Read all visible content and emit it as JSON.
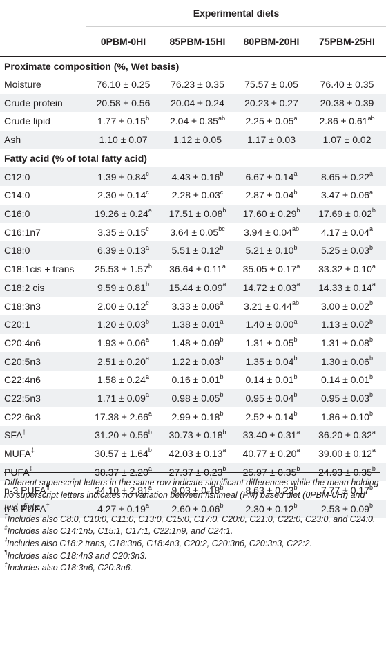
{
  "header": {
    "group_label": "Experimental diets",
    "columns": [
      "0PBM-0HI",
      "85PBM-15HI",
      "80PBM-20HI",
      "75PBM-25HI"
    ]
  },
  "sections": [
    {
      "title": "Proximate composition (%, Wet basis)",
      "rows": [
        {
          "label": "Moisture",
          "label_sup": "",
          "values": [
            {
              "v": "76.10 ± 0.25",
              "s": ""
            },
            {
              "v": "76.23 ± 0.35",
              "s": ""
            },
            {
              "v": "75.57 ± 0.05",
              "s": ""
            },
            {
              "v": "76.40 ± 0.35",
              "s": ""
            }
          ]
        },
        {
          "label": "Crude protein",
          "label_sup": "",
          "values": [
            {
              "v": "20.58 ± 0.56",
              "s": ""
            },
            {
              "v": "20.04 ± 0.24",
              "s": ""
            },
            {
              "v": "20.23 ± 0.27",
              "s": ""
            },
            {
              "v": "20.38 ± 0.39",
              "s": ""
            }
          ]
        },
        {
          "label": "Crude lipid",
          "label_sup": "",
          "values": [
            {
              "v": "1.77 ± 0.15",
              "s": "b"
            },
            {
              "v": "2.04 ± 0.35",
              "s": "ab"
            },
            {
              "v": "2.25 ± 0.05",
              "s": "a"
            },
            {
              "v": "2.86 ± 0.61",
              "s": "ab"
            }
          ]
        },
        {
          "label": "Ash",
          "label_sup": "",
          "values": [
            {
              "v": "1.10 ± 0.07",
              "s": ""
            },
            {
              "v": "1.12 ± 0.05",
              "s": ""
            },
            {
              "v": "1.17 ± 0.03",
              "s": ""
            },
            {
              "v": "1.07 ± 0.02",
              "s": ""
            }
          ]
        }
      ]
    },
    {
      "title": "Fatty acid (% of total fatty acid)",
      "rows": [
        {
          "label": "C12:0",
          "label_sup": "",
          "values": [
            {
              "v": "1.39 ± 0.84",
              "s": "c"
            },
            {
              "v": "4.43 ± 0.16",
              "s": "b"
            },
            {
              "v": "6.67 ± 0.14",
              "s": "a"
            },
            {
              "v": "8.65 ± 0.22",
              "s": "a"
            }
          ]
        },
        {
          "label": "C14:0",
          "label_sup": "",
          "values": [
            {
              "v": "2.30 ± 0.14",
              "s": "c"
            },
            {
              "v": "2.28 ± 0.03",
              "s": "c"
            },
            {
              "v": "2.87 ± 0.04",
              "s": "b"
            },
            {
              "v": "3.47 ± 0.06",
              "s": "a"
            }
          ]
        },
        {
          "label": "C16:0",
          "label_sup": "",
          "values": [
            {
              "v": "19.26 ± 0.24",
              "s": "a"
            },
            {
              "v": "17.51 ± 0.08",
              "s": "b"
            },
            {
              "v": "17.60 ± 0.29",
              "s": "b"
            },
            {
              "v": "17.69 ± 0.02",
              "s": "b"
            }
          ]
        },
        {
          "label": "C16:1n7",
          "label_sup": "",
          "values": [
            {
              "v": "3.35 ± 0.15",
              "s": "c"
            },
            {
              "v": "3.64 ± 0.05",
              "s": "bc"
            },
            {
              "v": "3.94 ± 0.04",
              "s": "ab"
            },
            {
              "v": "4.17 ± 0.04",
              "s": "a"
            }
          ]
        },
        {
          "label": "C18:0",
          "label_sup": "",
          "values": [
            {
              "v": "6.39 ± 0.13",
              "s": "a"
            },
            {
              "v": "5.51 ± 0.12",
              "s": "b"
            },
            {
              "v": "5.21 ± 0.10",
              "s": "b"
            },
            {
              "v": "5.25 ± 0.03",
              "s": "b"
            }
          ]
        },
        {
          "label": "C18:1cis + trans",
          "label_sup": "",
          "values": [
            {
              "v": "25.53 ± 1.57",
              "s": "b"
            },
            {
              "v": "36.64 ± 0.11",
              "s": "a"
            },
            {
              "v": "35.05 ± 0.17",
              "s": "a"
            },
            {
              "v": "33.32 ± 0.10",
              "s": "a"
            }
          ]
        },
        {
          "label": "C18:2 cis",
          "label_sup": "",
          "values": [
            {
              "v": "9.59 ± 0.81",
              "s": "b"
            },
            {
              "v": "15.44 ± 0.09",
              "s": "a"
            },
            {
              "v": "14.72 ± 0.03",
              "s": "a"
            },
            {
              "v": "14.33 ± 0.14",
              "s": "a"
            }
          ]
        },
        {
          "label": "C18:3n3",
          "label_sup": "",
          "values": [
            {
              "v": "2.00 ± 0.12",
              "s": "c"
            },
            {
              "v": "3.33 ± 0.06",
              "s": "a"
            },
            {
              "v": "3.21 ± 0.44",
              "s": "ab"
            },
            {
              "v": "3.00 ± 0.02",
              "s": "b"
            }
          ]
        },
        {
          "label": "C20:1",
          "label_sup": "",
          "values": [
            {
              "v": "1.20 ± 0.03",
              "s": "b"
            },
            {
              "v": "1.38 ± 0.01",
              "s": "a"
            },
            {
              "v": "1.40 ± 0.00",
              "s": "a"
            },
            {
              "v": "1.13 ± 0.02",
              "s": "b"
            }
          ]
        },
        {
          "label": "C20:4n6",
          "label_sup": "",
          "values": [
            {
              "v": "1.93 ± 0.06",
              "s": "a"
            },
            {
              "v": "1.48 ± 0.09",
              "s": "b"
            },
            {
              "v": "1.31 ± 0.05",
              "s": "b"
            },
            {
              "v": "1.31 ± 0.08",
              "s": "b"
            }
          ]
        },
        {
          "label": "C20:5n3",
          "label_sup": "",
          "values": [
            {
              "v": "2.51 ± 0.20",
              "s": "a"
            },
            {
              "v": "1.22 ± 0.03",
              "s": "b"
            },
            {
              "v": "1.35 ± 0.04",
              "s": "b"
            },
            {
              "v": "1.30 ± 0.06",
              "s": "b"
            }
          ]
        },
        {
          "label": "C22:4n6",
          "label_sup": "",
          "values": [
            {
              "v": "1.58 ± 0.24",
              "s": "a"
            },
            {
              "v": "0.16 ± 0.01",
              "s": "b"
            },
            {
              "v": "0.14 ± 0.01",
              "s": "b"
            },
            {
              "v": "0.14 ± 0.01",
              "s": "b"
            }
          ]
        },
        {
          "label": "C22:5n3",
          "label_sup": "",
          "values": [
            {
              "v": "1.71 ± 0.09",
              "s": "a"
            },
            {
              "v": "0.98 ± 0.05",
              "s": "b"
            },
            {
              "v": "0.95 ± 0.04",
              "s": "b"
            },
            {
              "v": "0.95 ± 0.03",
              "s": "b"
            }
          ]
        },
        {
          "label": "C22:6n3",
          "label_sup": "",
          "values": [
            {
              "v": "17.38 ± 2.66",
              "s": "a"
            },
            {
              "v": "2.99 ± 0.18",
              "s": "b"
            },
            {
              "v": "2.52 ± 0.14",
              "s": "b"
            },
            {
              "v": "1.86 ± 0.10",
              "s": "b"
            }
          ]
        },
        {
          "label": "SFA",
          "label_sup": "†",
          "values": [
            {
              "v": "31.20 ± 0.56",
              "s": "b"
            },
            {
              "v": "30.73 ± 0.18",
              "s": "b"
            },
            {
              "v": "33.40 ± 0.31",
              "s": "a"
            },
            {
              "v": "36.20 ± 0.32",
              "s": "a"
            }
          ]
        },
        {
          "label": "MUFA",
          "label_sup": "‡",
          "values": [
            {
              "v": "30.57 ± 1.64",
              "s": "b"
            },
            {
              "v": "42.03 ± 0.13",
              "s": "a"
            },
            {
              "v": "40.77 ± 0.20",
              "s": "a"
            },
            {
              "v": "39.00 ± 0.12",
              "s": "a"
            }
          ]
        },
        {
          "label": "PUFA",
          "label_sup": "⸸",
          "values": [
            {
              "v": "38.37 ± 2.20",
              "s": "a"
            },
            {
              "v": "27.37 ± 0.23",
              "s": "b"
            },
            {
              "v": "25.97 ± 0.35",
              "s": "b"
            },
            {
              "v": "24.93 ± 0.35",
              "s": "b"
            }
          ]
        },
        {
          "label": "n-3 PUFA",
          "label_sup": "¶",
          "values": [
            {
              "v": "24.10 ± 2.81",
              "s": "a"
            },
            {
              "v": "9.03 ± 0.18",
              "s": "b"
            },
            {
              "v": "8.63 ± 0.23",
              "s": "b"
            },
            {
              "v": "7.77 ± 0.17",
              "s": "b"
            }
          ]
        },
        {
          "label": "n-6 PUFA",
          "label_sup": "†",
          "values": [
            {
              "v": "4.27 ± 0.19",
              "s": "a"
            },
            {
              "v": "2.60 ± 0.06",
              "s": "b"
            },
            {
              "v": "2.30 ± 0.12",
              "s": "b"
            },
            {
              "v": "2.53 ± 0.09",
              "s": "b"
            }
          ]
        }
      ]
    }
  ],
  "footnotes": [
    {
      "sup": "",
      "text": "Different superscript letters in the same row indicate significant differences while the mean holding no superscript letters indicates no variation between fishmeal (FM) based diet (0PBM-0HI) and test diets."
    },
    {
      "sup": "†",
      "text": "Includes also C8:0, C10:0, C11:0, C13:0, C15:0, C17:0, C20:0, C21:0, C22:0, C23:0, and C24:0."
    },
    {
      "sup": "‡",
      "text": "Includes also C14:1n5, C15:1, C17:1, C22:1n9, and C24:1."
    },
    {
      "sup": "⸸",
      "text": "Includes also C18:2 trans, C18:3n6, C18:4n3, C20:2, C20:3n6, C20:3n3, C22:2."
    },
    {
      "sup": "¶",
      "text": "Includes also C18:4n3 and C20:3n3."
    },
    {
      "sup": "†",
      "text": "Includes also C18:3n6, C20:3n6."
    }
  ]
}
